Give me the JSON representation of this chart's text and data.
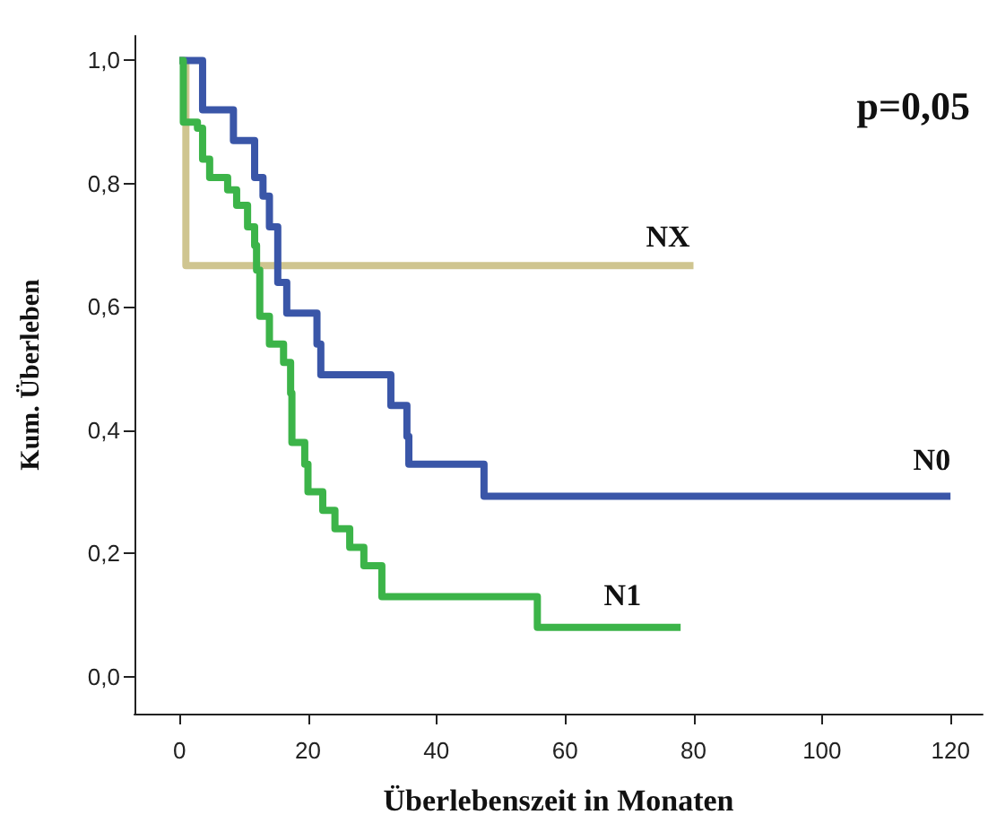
{
  "chart_data": {
    "type": "step",
    "xlabel": "Überlebenszeit in Monaten",
    "ylabel": "Kum. Überleben",
    "annotations": [
      "p=0,05"
    ],
    "xlim": [
      -7,
      125
    ],
    "xticks": [
      0,
      20,
      40,
      60,
      80,
      100,
      120
    ],
    "ylim": [
      -0.06,
      1.04
    ],
    "yticks": [
      {
        "value": 0,
        "label": "0,0"
      },
      {
        "value": 0.2,
        "label": "0,2"
      },
      {
        "value": 0.4,
        "label": "0,4"
      },
      {
        "value": 0.6,
        "label": "0,6"
      },
      {
        "value": 0.8,
        "label": "0,8"
      },
      {
        "value": 1,
        "label": "1,0"
      }
    ],
    "grid": false,
    "legend": false,
    "marker": "none",
    "line_style": "solid",
    "series": [
      {
        "name": "NX",
        "color": "#cfc590",
        "x": [
          0,
          1,
          80
        ],
        "values": [
          1.0,
          0.667,
          0.667
        ]
      },
      {
        "name": "N0",
        "color": "#3a56a8",
        "x": [
          0,
          3.6,
          8.4,
          11.7,
          13,
          14,
          15.3,
          16.7,
          21.4,
          22,
          32.9,
          35.4,
          35.7,
          47.4,
          120
        ],
        "values": [
          1.0,
          0.92,
          0.87,
          0.81,
          0.78,
          0.73,
          0.64,
          0.59,
          0.54,
          0.49,
          0.44,
          0.39,
          0.345,
          0.293,
          0.293
        ]
      },
      {
        "name": "N1",
        "color": "#3cb449",
        "x": [
          0,
          0.6,
          2.8,
          3.6,
          4.7,
          7.5,
          8.9,
          10.6,
          11.7,
          12,
          12.5,
          14,
          16.2,
          17.3,
          17.5,
          19.5,
          20,
          22.3,
          24.2,
          26.5,
          28.7,
          31.5,
          55.7,
          78
        ],
        "values": [
          1.0,
          0.9,
          0.89,
          0.84,
          0.81,
          0.79,
          0.765,
          0.73,
          0.7,
          0.66,
          0.585,
          0.54,
          0.51,
          0.46,
          0.38,
          0.345,
          0.3,
          0.27,
          0.24,
          0.21,
          0.18,
          0.13,
          0.08,
          0.08
        ]
      }
    ]
  }
}
